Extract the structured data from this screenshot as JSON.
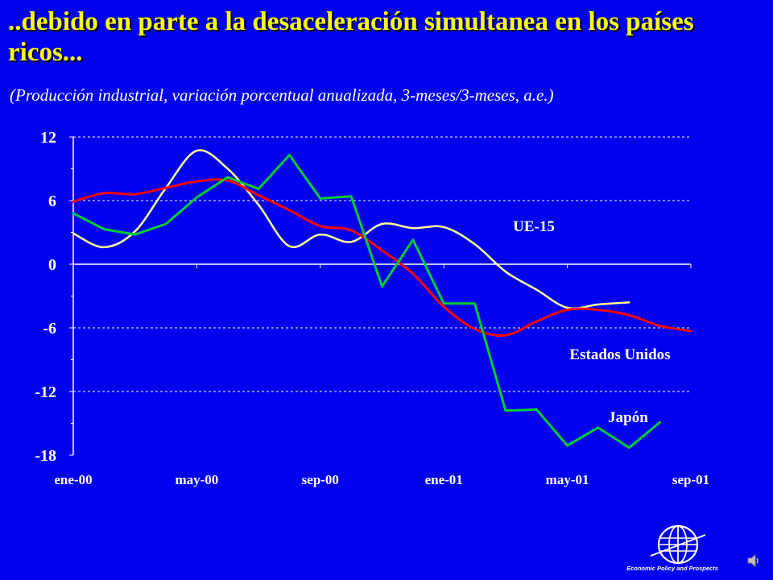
{
  "slide": {
    "title": "..debido en parte a la desaceleración simultanea en los países ricos...",
    "subtitle": "(Producción industrial, variación porcentual anualizada, 3-meses/3-meses, a.e.)",
    "logo_text": "Economic Policy and Prospects"
  },
  "chart_data": {
    "type": "line",
    "title": "",
    "xlabel": "",
    "ylabel": "",
    "x_ticks": [
      "ene-00",
      "may-00",
      "sep-00",
      "ene-01",
      "may-01",
      "sep-01"
    ],
    "y_ticks": [
      12,
      6,
      0,
      -6,
      -12,
      -18
    ],
    "ylim": [
      -18,
      12
    ],
    "grid": "horizontal-dashed",
    "series": [
      {
        "name": "UE-15",
        "color": "#ffff99",
        "x": [
          "2000-01",
          "2000-02",
          "2000-03",
          "2000-04",
          "2000-05",
          "2000-06",
          "2000-07",
          "2000-08",
          "2000-09",
          "2000-10",
          "2000-11",
          "2000-12",
          "2001-01",
          "2001-02",
          "2001-03",
          "2001-04",
          "2001-05",
          "2001-06",
          "2001-07"
        ],
        "y": [
          2.9,
          1.6,
          3.1,
          7.2,
          10.7,
          9.0,
          5.6,
          1.7,
          2.8,
          2.1,
          3.8,
          3.4,
          3.5,
          1.9,
          -0.7,
          -2.4,
          -4.1,
          -3.8,
          -3.6
        ]
      },
      {
        "name": "Estados Unidos",
        "color": "#ff0000",
        "x": [
          "2000-01",
          "2000-02",
          "2000-03",
          "2000-04",
          "2000-05",
          "2000-06",
          "2000-07",
          "2000-08",
          "2000-09",
          "2000-10",
          "2000-11",
          "2000-12",
          "2001-01",
          "2001-02",
          "2001-03",
          "2001-04",
          "2001-05",
          "2001-06",
          "2001-07",
          "2001-08",
          "2001-09"
        ],
        "y": [
          5.9,
          6.7,
          6.6,
          7.2,
          7.8,
          7.9,
          6.5,
          5.1,
          3.6,
          3.2,
          1.3,
          -0.9,
          -4.0,
          -6.1,
          -6.7,
          -5.4,
          -4.3,
          -4.3,
          -4.8,
          -5.8,
          -6.3
        ]
      },
      {
        "name": "Japón",
        "color": "#00cc33",
        "x": [
          "2000-01",
          "2000-02",
          "2000-03",
          "2000-04",
          "2000-05",
          "2000-06",
          "2000-07",
          "2000-08",
          "2000-09",
          "2000-10",
          "2000-11",
          "2000-12",
          "2001-01",
          "2001-02",
          "2001-03",
          "2001-04",
          "2001-05",
          "2001-06",
          "2001-07",
          "2001-08"
        ],
        "y": [
          4.8,
          3.3,
          2.8,
          3.8,
          6.3,
          8.2,
          7.1,
          10.3,
          6.2,
          6.4,
          -2.1,
          2.3,
          -3.7,
          -3.7,
          -13.8,
          -13.7,
          -17.1,
          -15.4,
          -17.3,
          -14.9
        ]
      }
    ]
  }
}
